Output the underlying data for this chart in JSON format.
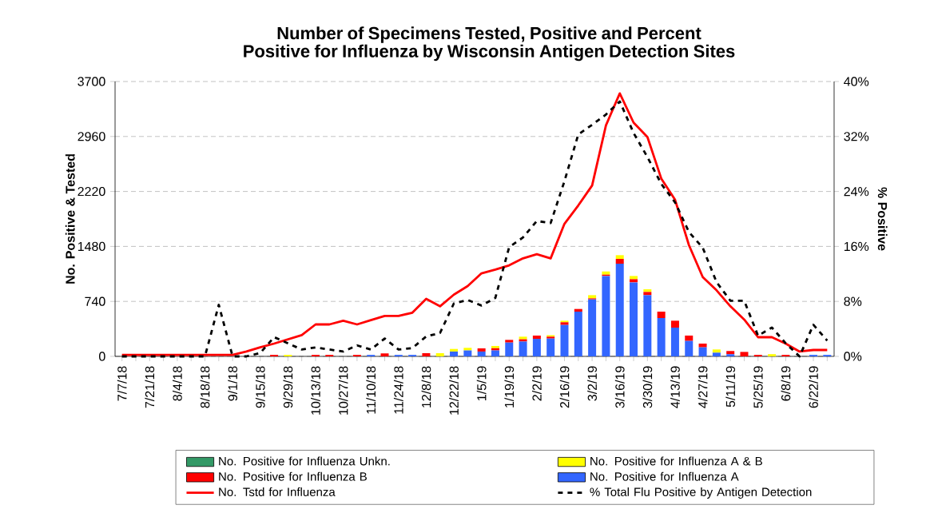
{
  "chart_data": {
    "type": "bar",
    "title": "Number of Specimens Tested, Positive and Percent Positive for Influenza by Wisconsin Antigen Detection Sites",
    "ylabel": "No. Positive & Tested",
    "y2label": "% Positive",
    "categories": [
      "7/7/18",
      null,
      "7/21/18",
      null,
      "8/4/18",
      null,
      "8/18/18",
      null,
      "9/1/18",
      null,
      "9/15/18",
      null,
      "9/29/18",
      null,
      "10/13/18",
      null,
      "10/27/18",
      null,
      "11/10/18",
      null,
      "11/24/18",
      null,
      "12/8/18",
      null,
      "12/22/18",
      null,
      "1/5/19",
      null,
      "1/19/19",
      null,
      "2/2/19",
      null,
      "2/16/19",
      null,
      "3/2/19",
      null,
      "3/16/19",
      null,
      "3/30/19",
      null,
      "4/13/19",
      null,
      "4/27/19",
      null,
      "5/11/19",
      null,
      "5/25/19",
      null,
      "6/8/19",
      null,
      "6/22/19",
      null
    ],
    "stacked": true,
    "series": [
      {
        "name": "No. Positive for Influenza A",
        "color": "#3366ff",
        "values": [
          0,
          0,
          0,
          0,
          0,
          0,
          0,
          0,
          0,
          0,
          0,
          0,
          0,
          0,
          0,
          0,
          0,
          0,
          20,
          0,
          20,
          20,
          0,
          0,
          65,
          80,
          65,
          80,
          186,
          200,
          236,
          240,
          423,
          602,
          767,
          1082,
          1247,
          996,
          824,
          516,
          387,
          208,
          122,
          50,
          29,
          0,
          0,
          0,
          0,
          0,
          20,
          20
        ]
      },
      {
        "name": "No. Positive for Influenza B",
        "color": "#ff0000",
        "values": [
          0,
          0,
          0,
          0,
          0,
          0,
          0,
          0,
          0,
          0,
          0,
          20,
          0,
          0,
          20,
          20,
          0,
          20,
          0,
          40,
          0,
          0,
          43,
          0,
          0,
          0,
          43,
          30,
          36,
          30,
          44,
          25,
          36,
          36,
          14,
          18,
          65,
          43,
          43,
          86,
          93,
          72,
          50,
          0,
          43,
          60,
          20,
          0,
          20,
          0,
          0,
          0
        ]
      },
      {
        "name": "No. Positive for Influenza A & B",
        "color": "#ffff00",
        "values": [
          0,
          0,
          0,
          0,
          0,
          0,
          0,
          0,
          0,
          0,
          0,
          0,
          20,
          0,
          0,
          0,
          0,
          0,
          0,
          0,
          0,
          0,
          0,
          43,
          35,
          35,
          0,
          30,
          0,
          35,
          0,
          20,
          21,
          0,
          43,
          43,
          50,
          43,
          36,
          0,
          0,
          0,
          0,
          43,
          0,
          0,
          0,
          30,
          0,
          0,
          0,
          0
        ]
      },
      {
        "name": "No. Positive for Influenza Unkn.",
        "color": "#339966",
        "values": [
          0,
          0,
          0,
          0,
          0,
          0,
          0,
          0,
          0,
          0,
          0,
          0,
          0,
          0,
          0,
          0,
          0,
          0,
          0,
          0,
          0,
          0,
          0,
          0,
          0,
          0,
          0,
          0,
          0,
          0,
          0,
          0,
          0,
          0,
          0,
          0,
          0,
          0,
          0,
          0,
          0,
          0,
          0,
          0,
          0,
          0,
          0,
          0,
          0,
          0,
          0,
          0
        ]
      },
      {
        "name": "No. Tstd for Influenza",
        "type": "line",
        "color": "#ff0000",
        "line_style": "solid",
        "values": [
          20,
          20,
          20,
          20,
          20,
          20,
          20,
          20,
          20,
          65,
          122,
          172,
          229,
          286,
          430,
          430,
          480,
          430,
          487,
          545,
          545,
          588,
          774,
          674,
          831,
          946,
          1118,
          1168,
          1225,
          1319,
          1376,
          1319,
          1785,
          2032,
          2300,
          3110,
          3540,
          3146,
          2953,
          2394,
          2107,
          1498,
          1068,
          889,
          674,
          495,
          258,
          258,
          172,
          65,
          86,
          86
        ]
      },
      {
        "name": "% Total Flu Positive by Antigen Detection",
        "type": "line",
        "axis": "y2",
        "color": "#000000",
        "line_style": "dashed",
        "values": [
          0,
          0,
          0,
          0,
          0,
          0,
          0,
          7.5,
          0,
          0,
          0.5,
          2.8,
          1.9,
          1.0,
          1.3,
          1.0,
          0.7,
          1.6,
          1.0,
          2.6,
          1.0,
          1.2,
          2.9,
          3.4,
          7.7,
          8.2,
          7.4,
          8.5,
          15.9,
          17.3,
          19.7,
          19.4,
          25.5,
          32.3,
          33.7,
          35.2,
          37.1,
          32.5,
          29.0,
          25.1,
          22.4,
          18.1,
          15.8,
          10.8,
          8.1,
          8.1,
          3.0,
          4.2,
          1.9,
          0,
          4.6,
          2.3
        ]
      }
    ],
    "ylim": [
      0,
      3700
    ],
    "yticks": [
      0,
      740,
      1480,
      2220,
      2960,
      3700
    ],
    "y2lim": [
      0,
      40
    ],
    "y2ticks": [
      {
        "value": 0,
        "label": "0%"
      },
      {
        "value": 8,
        "label": "8%"
      },
      {
        "value": 16,
        "label": "16%"
      },
      {
        "value": 24,
        "label": "24%"
      },
      {
        "value": 32,
        "label": "32%"
      },
      {
        "value": 40,
        "label": "40%"
      }
    ],
    "grid": "y",
    "legend": "bottom"
  }
}
